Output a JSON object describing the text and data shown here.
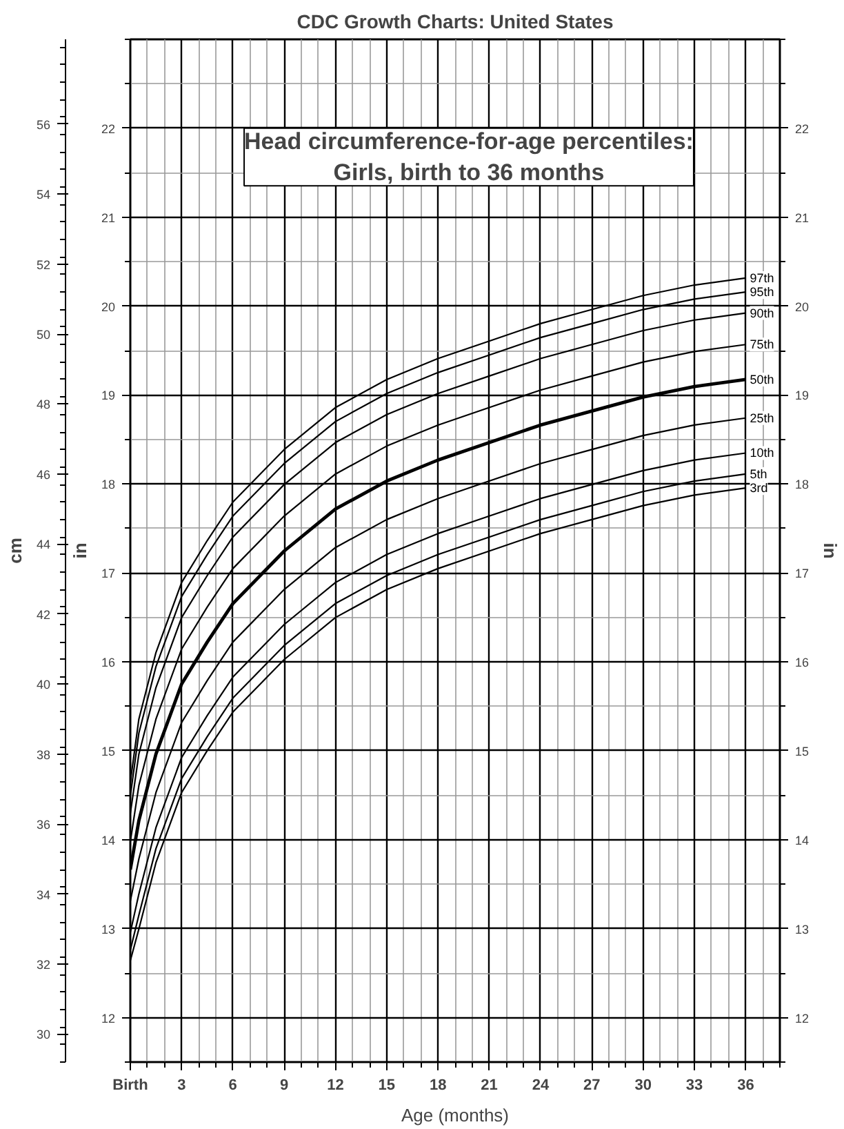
{
  "chart_data": {
    "type": "line",
    "title": "CDC Growth Charts: United States",
    "subtitle": "Head circumference-for-age percentiles:\nGirls, birth to 36 months",
    "xlabel": "Age (months)",
    "ylabel": "cm",
    "y2label": "in",
    "y3label": "in",
    "x": [
      0,
      0.5,
      1.5,
      3,
      4.5,
      6,
      9,
      12,
      15,
      18,
      21,
      24,
      27,
      30,
      33,
      36
    ],
    "series": [
      {
        "name": "97th",
        "color": "#000000",
        "values": [
          37.2,
          39.0,
          40.9,
          42.9,
          44.1,
          45.2,
          46.7,
          47.9,
          48.7,
          49.3,
          49.8,
          50.3,
          50.7,
          51.1,
          51.4,
          51.6
        ]
      },
      {
        "name": "95th",
        "color": "#000000",
        "values": [
          36.8,
          38.6,
          40.5,
          42.5,
          43.7,
          44.8,
          46.3,
          47.5,
          48.3,
          48.9,
          49.4,
          49.9,
          50.3,
          50.7,
          51.0,
          51.2
        ]
      },
      {
        "name": "90th",
        "color": "#000000",
        "values": [
          36.3,
          38.0,
          39.9,
          41.9,
          43.1,
          44.2,
          45.7,
          46.9,
          47.7,
          48.3,
          48.8,
          49.3,
          49.7,
          50.1,
          50.4,
          50.6
        ]
      },
      {
        "name": "75th",
        "color": "#000000",
        "values": [
          35.5,
          37.1,
          39.0,
          41.0,
          42.2,
          43.3,
          44.8,
          46.0,
          46.8,
          47.4,
          47.9,
          48.4,
          48.8,
          49.2,
          49.5,
          49.7
        ]
      },
      {
        "name": "50th",
        "color": "#000000",
        "values": [
          34.7,
          36.1,
          38.0,
          40.0,
          41.2,
          42.3,
          43.8,
          45.0,
          45.8,
          46.4,
          46.9,
          47.4,
          47.8,
          48.2,
          48.5,
          48.7
        ]
      },
      {
        "name": "25th",
        "color": "#000000",
        "values": [
          33.8,
          35.0,
          36.9,
          38.9,
          40.1,
          41.2,
          42.7,
          43.9,
          44.7,
          45.3,
          45.8,
          46.3,
          46.7,
          47.1,
          47.4,
          47.6
        ]
      },
      {
        "name": "10th",
        "color": "#000000",
        "values": [
          32.9,
          34.0,
          35.9,
          37.9,
          39.1,
          40.2,
          41.7,
          42.9,
          43.7,
          44.3,
          44.8,
          45.3,
          45.7,
          46.1,
          46.4,
          46.6
        ]
      },
      {
        "name": "5th",
        "color": "#000000",
        "values": [
          32.4,
          33.4,
          35.3,
          37.3,
          38.5,
          39.6,
          41.1,
          42.3,
          43.1,
          43.7,
          44.2,
          44.7,
          45.1,
          45.5,
          45.8,
          46.0
        ]
      },
      {
        "name": "3rd",
        "color": "#000000",
        "values": [
          32.1,
          33.0,
          34.9,
          36.9,
          38.1,
          39.2,
          40.7,
          41.9,
          42.7,
          43.3,
          43.8,
          44.3,
          44.7,
          45.1,
          45.4,
          45.6
        ]
      }
    ],
    "xlim": [
      0,
      38
    ],
    "xticks": [
      {
        "value": 0,
        "label": "Birth"
      },
      3,
      6,
      9,
      12,
      15,
      18,
      21,
      24,
      27,
      30,
      33,
      36
    ],
    "ylim": [
      29.2,
      58.42
    ],
    "yticks": [
      30,
      32,
      34,
      36,
      38,
      40,
      42,
      44,
      46,
      48,
      50,
      52,
      54,
      56
    ],
    "y2lim": [
      11.5,
      23
    ],
    "y2ticks": [
      12,
      13,
      14,
      15,
      16,
      17,
      18,
      19,
      20,
      21,
      22
    ],
    "y3lim": [
      11.5,
      23
    ],
    "y3ticks": [
      12,
      13,
      14,
      15,
      16,
      17,
      18,
      19,
      20,
      21,
      22
    ],
    "grid": true,
    "marker": "none",
    "line_style": "solid"
  }
}
